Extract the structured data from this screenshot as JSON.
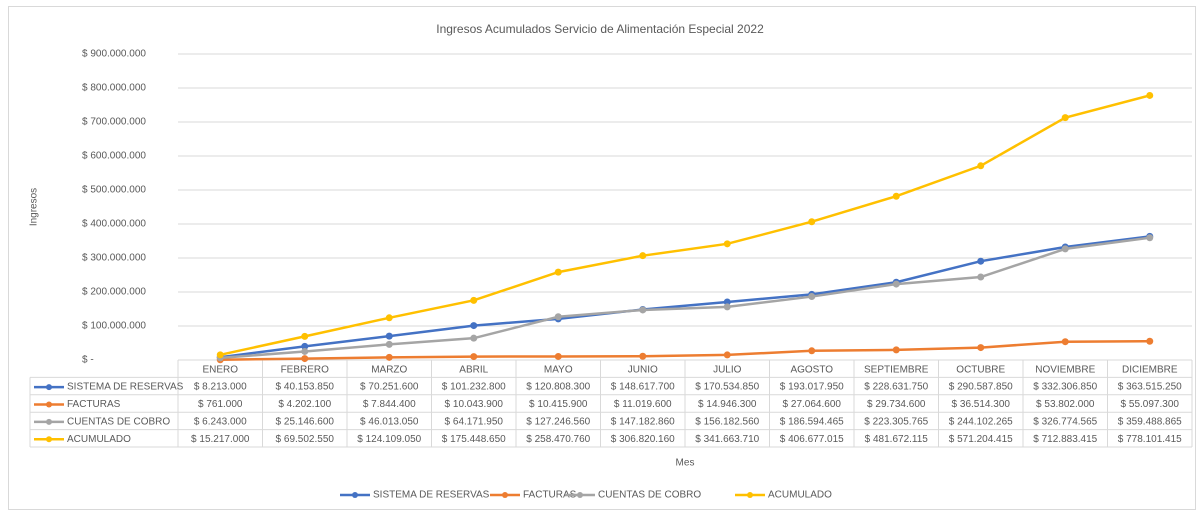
{
  "chart_data": {
    "type": "line",
    "title": "Ingresos Acumulados Servicio de Alimentación Especial 2022",
    "y_label": "Ingresos",
    "x_label": "Mes",
    "categories": [
      "ENERO",
      "FEBRERO",
      "MARZO",
      "ABRIL",
      "MAYO",
      "JUNIO",
      "JULIO",
      "AGOSTO",
      "SEPTIEMBRE",
      "OCTUBRE",
      "NOVIEMBRE",
      "DICIEMBRE"
    ],
    "ylim": [
      0,
      900000000
    ],
    "yticks": [
      {
        "value": 0,
        "label": "$ -"
      },
      {
        "value": 100000000,
        "label": "$ 100.000.000"
      },
      {
        "value": 200000000,
        "label": "$ 200.000.000"
      },
      {
        "value": 300000000,
        "label": "$ 300.000.000"
      },
      {
        "value": 400000000,
        "label": "$ 400.000.000"
      },
      {
        "value": 500000000,
        "label": "$ 500.000.000"
      },
      {
        "value": 600000000,
        "label": "$ 600.000.000"
      },
      {
        "value": 700000000,
        "label": "$ 700.000.000"
      },
      {
        "value": 800000000,
        "label": "$ 800.000.000"
      },
      {
        "value": 900000000,
        "label": "$ 900.000.000"
      }
    ],
    "grid": true,
    "legend": "bottom",
    "series": [
      {
        "name": "SISTEMA DE RESERVAS",
        "color": "#4472c4",
        "values": [
          8213000,
          40153850,
          70251600,
          101232800,
          120808300,
          148617700,
          170534850,
          193017950,
          228631750,
          290587850,
          332306850,
          363515250
        ],
        "value_labels": [
          "$ 8.213.000",
          "$ 40.153.850",
          "$ 70.251.600",
          "$ 101.232.800",
          "$ 120.808.300",
          "$ 148.617.700",
          "$ 170.534.850",
          "$ 193.017.950",
          "$ 228.631.750",
          "$ 290.587.850",
          "$ 332.306.850",
          "$ 363.515.250"
        ]
      },
      {
        "name": "FACTURAS",
        "color": "#ed7d31",
        "values": [
          761000,
          4202100,
          7844400,
          10043900,
          10415900,
          11019600,
          14946300,
          27064600,
          29734600,
          36514300,
          53802000,
          55097300
        ],
        "value_labels": [
          "$ 761.000",
          "$ 4.202.100",
          "$ 7.844.400",
          "$ 10.043.900",
          "$ 10.415.900",
          "$ 11.019.600",
          "$ 14.946.300",
          "$ 27.064.600",
          "$ 29.734.600",
          "$ 36.514.300",
          "$ 53.802.000",
          "$ 55.097.300"
        ]
      },
      {
        "name": "CUENTAS DE COBRO",
        "color": "#a5a5a5",
        "values": [
          6243000,
          25146600,
          46013050,
          64171950,
          127246560,
          147182860,
          156182560,
          186594465,
          223305765,
          244102265,
          326774565,
          359488865
        ],
        "value_labels": [
          "$ 6.243.000",
          "$ 25.146.600",
          "$ 46.013.050",
          "$ 64.171.950",
          "$ 127.246.560",
          "$ 147.182.860",
          "$ 156.182.560",
          "$ 186.594.465",
          "$ 223.305.765",
          "$ 244.102.265",
          "$ 326.774.565",
          "$ 359.488.865"
        ]
      },
      {
        "name": "ACUMULADO",
        "color": "#ffc000",
        "values": [
          15217000,
          69502550,
          124109050,
          175448650,
          258470760,
          306820160,
          341663710,
          406677015,
          481672115,
          571204415,
          712883415,
          778101415
        ],
        "value_labels": [
          "$ 15.217.000",
          "$ 69.502.550",
          "$ 124.109.050",
          "$ 175.448.650",
          "$ 258.470.760",
          "$ 306.820.160",
          "$ 341.663.710",
          "$ 406.677.015",
          "$ 481.672.115",
          "$ 571.204.415",
          "$ 712.883.415",
          "$ 778.101.415"
        ]
      }
    ]
  }
}
